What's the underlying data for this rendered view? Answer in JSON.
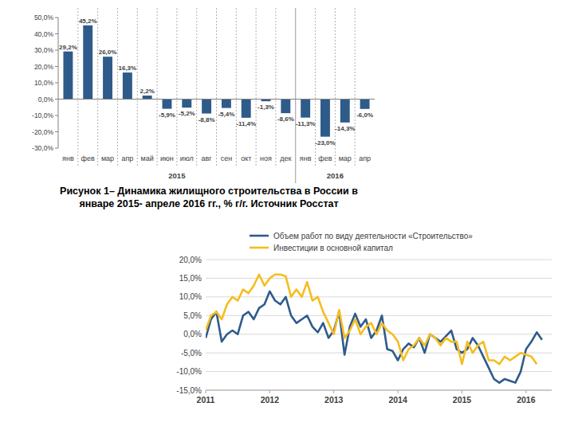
{
  "chart_data": [
    {
      "type": "bar",
      "title": "Рисунок 1– Динамика жилищного строительства в России в январе 2015- апреле 2016 гг., % г/г. Источник Росстат",
      "categories": [
        "янв",
        "фев",
        "мар",
        "апр",
        "май",
        "июн",
        "июл",
        "авг",
        "сен",
        "окт",
        "ноя",
        "дек",
        "янв",
        "фев",
        "мар",
        "апр"
      ],
      "category_groups": [
        {
          "label": "2015",
          "start": 0,
          "end": 11
        },
        {
          "label": "2016",
          "start": 12,
          "end": 15
        }
      ],
      "values": [
        29.2,
        45.2,
        26.0,
        16.3,
        2.2,
        -5.9,
        -5.2,
        -8.8,
        -5.4,
        -11.4,
        -1.3,
        -8.6,
        -11.3,
        -23.0,
        -14.3,
        -6.0
      ],
      "value_labels": [
        "29,2%",
        "45,2%",
        "26,0%",
        "16,3%",
        "2,2%",
        "-5,9%",
        "-5,2%",
        "-8,8%",
        "-5,4%",
        "-11,4%",
        "-1,3%",
        "-8,6%",
        "-11,3%",
        "-23,0%",
        "-14,3%",
        "-6,0%"
      ],
      "color": "#2e5b8a",
      "ylim": [
        -30,
        50
      ],
      "yticks": [
        {
          "value": -30,
          "label": "-30,0%"
        },
        {
          "value": -20,
          "label": "-20,0%"
        },
        {
          "value": -10,
          "label": "-10,0%"
        },
        {
          "value": 0,
          "label": "0,0%"
        },
        {
          "value": 10,
          "label": "10,0%"
        },
        {
          "value": 20,
          "label": "20,0%"
        },
        {
          "value": 30,
          "label": "30,0%"
        },
        {
          "value": 40,
          "label": "40,0%"
        },
        {
          "value": 50,
          "label": "50,0%"
        }
      ],
      "grid": false,
      "data_labels": true
    },
    {
      "type": "line",
      "x": [
        2011,
        2011.083,
        2011.167,
        2011.25,
        2011.333,
        2011.417,
        2011.5,
        2011.583,
        2011.667,
        2011.75,
        2011.833,
        2011.917,
        2012,
        2012.083,
        2012.167,
        2012.25,
        2012.333,
        2012.417,
        2012.5,
        2012.583,
        2012.667,
        2012.75,
        2012.833,
        2012.917,
        2013,
        2013.083,
        2013.167,
        2013.25,
        2013.333,
        2013.417,
        2013.5,
        2013.583,
        2013.667,
        2013.75,
        2013.833,
        2013.917,
        2014,
        2014.083,
        2014.167,
        2014.25,
        2014.333,
        2014.417,
        2014.5,
        2014.583,
        2014.667,
        2014.75,
        2014.833,
        2014.917,
        2015,
        2015.083,
        2015.167,
        2015.25,
        2015.333,
        2015.417,
        2015.5,
        2015.583,
        2015.667,
        2015.75,
        2015.833,
        2015.917,
        2016,
        2016.083,
        2016.167,
        2016.25
      ],
      "series": [
        {
          "name": "Объем работ по виду деятельности «Строительство»",
          "color": "#2f5b8c",
          "values": [
            -1,
            4,
            6,
            -2,
            0,
            1,
            0,
            5,
            6,
            4,
            7,
            8,
            11.5,
            9,
            8,
            10,
            5,
            3,
            4,
            5,
            2,
            0.5,
            3,
            -1,
            1,
            6,
            -5.5,
            2,
            5.5,
            2,
            4,
            -1,
            1,
            5,
            -4,
            -4.5,
            -7,
            -4,
            -2.5,
            -3.5,
            -1,
            -5,
            0,
            -1,
            -2,
            -0.5,
            1,
            -4,
            -5,
            -4,
            -1,
            -3,
            -6,
            -9,
            -12,
            -13,
            -12,
            -12.5,
            -13,
            -10,
            -4,
            -2,
            0.5,
            -1.5
          ]
        },
        {
          "name": "Инвестиции в основной капитал",
          "color": "#f5bd1f",
          "values": [
            1,
            5,
            6,
            4,
            8,
            10,
            9,
            12,
            11,
            13,
            16,
            13,
            15,
            16,
            16,
            15.5,
            10,
            12,
            10,
            14,
            9,
            10,
            6,
            3,
            0,
            6.5,
            -1,
            1,
            4,
            0,
            2,
            3,
            0,
            3,
            1,
            0,
            -2,
            -7,
            -4,
            -3,
            -1,
            -3,
            0,
            -1,
            -3,
            -1,
            -2,
            -2,
            -8,
            -2,
            -5,
            -3,
            -2,
            -7,
            -7,
            -8,
            -6,
            -7,
            -6,
            -5,
            -5.5,
            -6,
            -8,
            null
          ]
        }
      ],
      "xlim": [
        2011,
        2016.4
      ],
      "xticks": [
        2011,
        2012,
        2013,
        2014,
        2015,
        2016
      ],
      "ylim": [
        -15,
        20
      ],
      "yticks": [
        {
          "value": -15,
          "label": "-15,0%"
        },
        {
          "value": -10,
          "label": "-10,0%"
        },
        {
          "value": -5,
          "label": "-5,0%"
        },
        {
          "value": 0,
          "label": "0,0%"
        },
        {
          "value": 5,
          "label": "5,0%"
        },
        {
          "value": 10,
          "label": "10,0%"
        },
        {
          "value": 15,
          "label": "15,0%"
        },
        {
          "value": 20,
          "label": "20,0%"
        }
      ],
      "grid": true,
      "legend": "upper left"
    }
  ]
}
